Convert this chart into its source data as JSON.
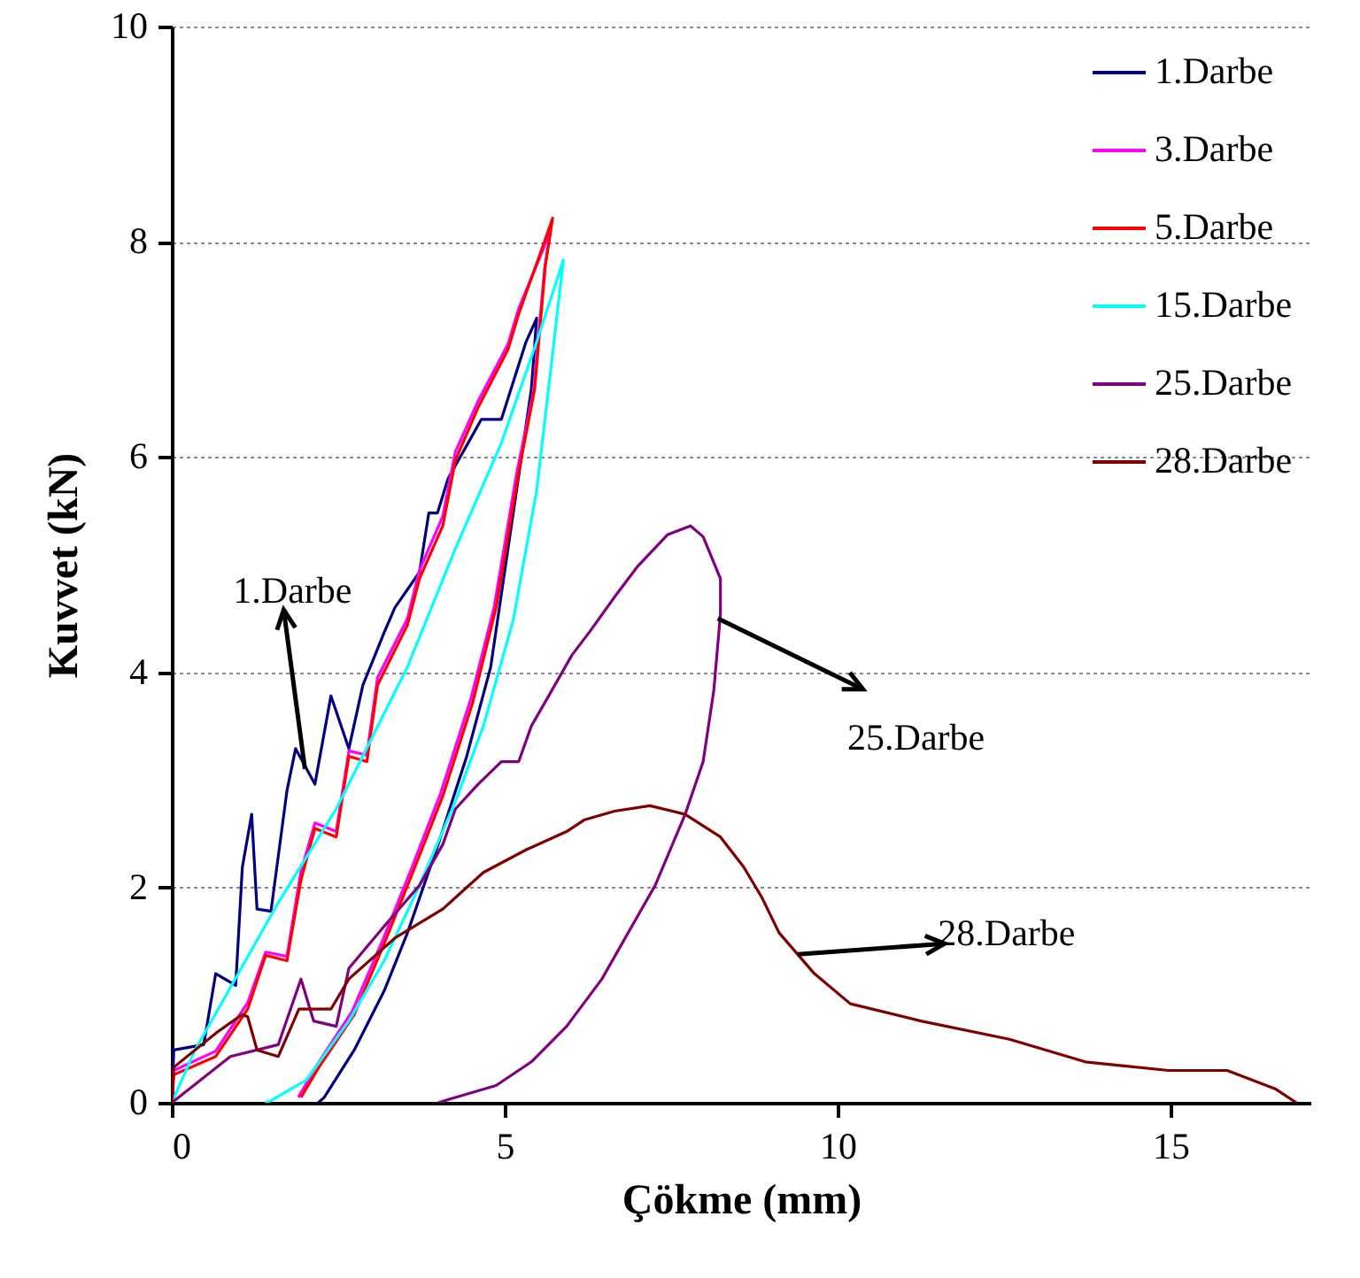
{
  "chart_data": {
    "type": "line",
    "xlabel": "Çökme (mm)",
    "ylabel": "Kuvvet (kN)",
    "xlim": [
      0,
      17.1
    ],
    "xticks": [
      0,
      5,
      10,
      15
    ],
    "ylim": [
      0,
      10
    ],
    "yticks": [
      0,
      2,
      4,
      6,
      8,
      10
    ],
    "grid": "y",
    "legend": "top right",
    "line_style": "solid",
    "marker": "none",
    "series": [
      {
        "name": "1.Darbe",
        "color": "#000080",
        "x": [
          0,
          0.03,
          0.48,
          0.66,
          0.96,
          1.06,
          1.2,
          1.28,
          1.49,
          1.73,
          1.86,
          2.15,
          2.39,
          2.66,
          2.87,
          3.19,
          3.35,
          3.72,
          3.86,
          3.99,
          4.15,
          4.65,
          4.95,
          5.32,
          5.48,
          5.4,
          5.27,
          5.05,
          4.79,
          4.43,
          4.0,
          3.54,
          3.19,
          2.74,
          2.29,
          2.2
        ],
        "values": [
          0,
          0.49,
          0.54,
          1.2,
          1.09,
          2.19,
          2.68,
          1.8,
          1.78,
          2.9,
          3.29,
          2.96,
          3.78,
          3.29,
          3.88,
          4.37,
          4.6,
          4.93,
          5.48,
          5.48,
          5.8,
          6.35,
          6.35,
          7.07,
          7.29,
          6.63,
          6.08,
          5.15,
          4.05,
          3.22,
          2.4,
          1.58,
          1.04,
          0.49,
          0.05,
          0
        ]
      },
      {
        "name": "3.Darbe",
        "color": "#ff00ff",
        "x": [
          0,
          0.03,
          0.66,
          1.14,
          1.41,
          1.73,
          1.94,
          2.15,
          2.47,
          2.66,
          2.93,
          3.09,
          3.54,
          3.72,
          4.07,
          4.26,
          4.6,
          5.05,
          5.21,
          5.59,
          5.7,
          5.6,
          5.43,
          5.18,
          4.84,
          4.49,
          4.04,
          3.59,
          3.16,
          2.71,
          2.18,
          1.9
        ],
        "values": [
          0,
          0.3,
          0.48,
          0.93,
          1.4,
          1.36,
          2.15,
          2.6,
          2.52,
          3.27,
          3.23,
          3.95,
          4.5,
          4.95,
          5.45,
          6.05,
          6.52,
          7.05,
          7.38,
          7.95,
          8.15,
          7.75,
          6.6,
          5.85,
          4.6,
          3.75,
          2.88,
          2.16,
          1.5,
          0.85,
          0.35,
          0.05
        ]
      },
      {
        "name": "5.Darbe",
        "color": "#ff0000",
        "x": [
          0,
          0.03,
          0.66,
          1.14,
          1.41,
          1.73,
          1.94,
          2.15,
          2.47,
          2.66,
          2.93,
          3.09,
          3.54,
          3.72,
          4.07,
          4.26,
          4.6,
          5.05,
          5.21,
          5.59,
          5.72,
          5.61,
          5.45,
          5.21,
          4.87,
          4.52,
          4.07,
          3.62,
          3.19,
          2.74,
          2.21,
          1.94
        ],
        "values": [
          0,
          0.26,
          0.43,
          0.87,
          1.37,
          1.32,
          2.07,
          2.55,
          2.47,
          3.22,
          3.17,
          3.88,
          4.44,
          4.87,
          5.36,
          5.97,
          6.46,
          7.0,
          7.33,
          7.99,
          8.22,
          7.78,
          6.63,
          5.86,
          4.6,
          3.72,
          2.85,
          2.14,
          1.48,
          0.82,
          0.33,
          0.05
        ]
      },
      {
        "name": "15.Darbe",
        "color": "#00ffff",
        "x": [
          0,
          0.35,
          1.6,
          2.47,
          3.54,
          4.26,
          4.95,
          5.48,
          5.88,
          5.74,
          5.48,
          5.13,
          4.68,
          4.26,
          3.72,
          3.19,
          2.66,
          2.02,
          1.49,
          1.4
        ],
        "values": [
          0,
          0.49,
          1.86,
          2.73,
          4.05,
          5.15,
          6.13,
          7.07,
          7.83,
          7.07,
          5.69,
          4.49,
          3.5,
          2.8,
          2.02,
          1.32,
          0.76,
          0.21,
          0.02,
          0
        ]
      },
      {
        "name": "25.Darbe",
        "color": "#800080",
        "x": [
          0,
          0.88,
          1.6,
          1.94,
          2.13,
          2.47,
          2.66,
          3.19,
          3.72,
          4.07,
          4.26,
          4.6,
          4.95,
          5.21,
          5.4,
          5.66,
          6.01,
          6.28,
          6.65,
          6.99,
          7.45,
          7.79,
          7.98,
          8.24,
          8.24,
          8.14,
          7.98,
          7.71,
          7.26,
          6.91,
          6.46,
          5.93,
          5.4,
          4.87,
          4.26,
          4.0
        ],
        "values": [
          0,
          0.43,
          0.54,
          1.15,
          0.76,
          0.71,
          1.25,
          1.64,
          2.02,
          2.4,
          2.73,
          2.96,
          3.17,
          3.17,
          3.5,
          3.78,
          4.16,
          4.38,
          4.7,
          4.98,
          5.28,
          5.36,
          5.26,
          4.87,
          4.54,
          3.83,
          3.17,
          2.68,
          2.02,
          1.64,
          1.15,
          0.71,
          0.38,
          0.16,
          0.05,
          0
        ]
      },
      {
        "name": "28.Darbe",
        "color": "#800000",
        "x": [
          0,
          0.03,
          0.69,
          1.06,
          1.14,
          1.28,
          1.6,
          1.91,
          2.39,
          2.66,
          3.35,
          4.07,
          4.68,
          5.32,
          5.93,
          6.2,
          6.65,
          7.18,
          7.71,
          8.24,
          8.59,
          8.86,
          9.12,
          9.65,
          10.19,
          11.25,
          12.58,
          13.72,
          14.97,
          15.85,
          16.57,
          16.89
        ],
        "values": [
          0,
          0.33,
          0.66,
          0.82,
          0.8,
          0.49,
          0.43,
          0.87,
          0.87,
          1.15,
          1.53,
          1.8,
          2.14,
          2.35,
          2.52,
          2.63,
          2.71,
          2.76,
          2.68,
          2.47,
          2.19,
          1.91,
          1.58,
          1.2,
          0.92,
          0.76,
          0.59,
          0.38,
          0.3,
          0.3,
          0.13,
          0
        ]
      }
    ],
    "annotations": [
      {
        "text": "1.Darbe",
        "x": 2.0,
        "y": 3.1
      },
      {
        "text": "25.Darbe",
        "x": 8.2,
        "y": 4.5
      },
      {
        "text": "28.Darbe",
        "x": 9.4,
        "y": 1.38
      }
    ]
  }
}
